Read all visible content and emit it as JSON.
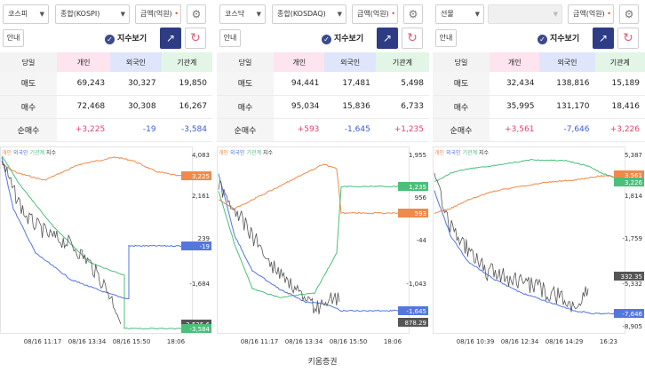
{
  "footer": "키움증권",
  "legend": {
    "individual": "개인",
    "foreign": "외국인",
    "institution": "기관계",
    "index": "지수"
  },
  "guide_label": "안내",
  "index_toggle": "지수보기",
  "table_headers": {
    "date": "당일",
    "individual": "개인",
    "foreign": "외국인",
    "institution": "기관계"
  },
  "row_labels": {
    "sell": "매도",
    "buy": "매수",
    "net": "순매수"
  },
  "colors": {
    "individual": "#f08a4b",
    "foreign": "#5577dd",
    "institution": "#4cbf7a",
    "index": "#555555",
    "accent": "#2e3c86"
  },
  "panels": [
    {
      "market": "코스피",
      "index_select": "종합(KOSPI)",
      "unit": "금액(억원)",
      "sell": [
        "69,243",
        "30,327",
        "19,850"
      ],
      "buy": [
        "72,468",
        "30,308",
        "16,267"
      ],
      "net": [
        "+3,225",
        "-19",
        "-3,584"
      ],
      "axis_ticks": [
        "4,083",
        "2,161",
        "239",
        "-1,684"
      ],
      "badges": {
        "individual": "3,225",
        "foreign": "-19",
        "index": "2,525.6",
        "institution": "-3,584"
      },
      "x_labels": [
        "08/16 11:17",
        "08/16 13:34",
        "08/16 15:50",
        "18:06"
      ]
    },
    {
      "market": "코스닥",
      "index_select": "종합(KOSDAQ)",
      "unit": "금액(억원)",
      "sell": [
        "94,441",
        "17,481",
        "5,498"
      ],
      "buy": [
        "95,034",
        "15,836",
        "6,733"
      ],
      "net": [
        "+593",
        "-1,645",
        "+1,235"
      ],
      "axis_ticks": [
        "1,955",
        "956",
        "-44",
        "-1,043"
      ],
      "badges": {
        "institution": "1,235",
        "individual": "593",
        "foreign": "-1,645",
        "index": "878.29"
      },
      "x_labels": [
        "08/16 11:17",
        "08/16 13:34",
        "08/16 15:50",
        "18:06"
      ]
    },
    {
      "market": "선물",
      "index_select": "",
      "unit": "금액(억원)",
      "sell": [
        "32,434",
        "138,816",
        "15,189"
      ],
      "buy": [
        "35,995",
        "131,170",
        "18,416"
      ],
      "net": [
        "+3,561",
        "-7,646",
        "+3,226"
      ],
      "axis_ticks": [
        "5,387",
        "1,814",
        "-1,759",
        "-5,332",
        "-8,905"
      ],
      "badges": {
        "individual": "3,561",
        "institution": "3,226",
        "index": "332.35",
        "foreign": "-7,646"
      },
      "x_labels": [
        "08/16 10:39",
        "08/16 12:34",
        "08/16 14:29",
        "16:23"
      ]
    }
  ]
}
